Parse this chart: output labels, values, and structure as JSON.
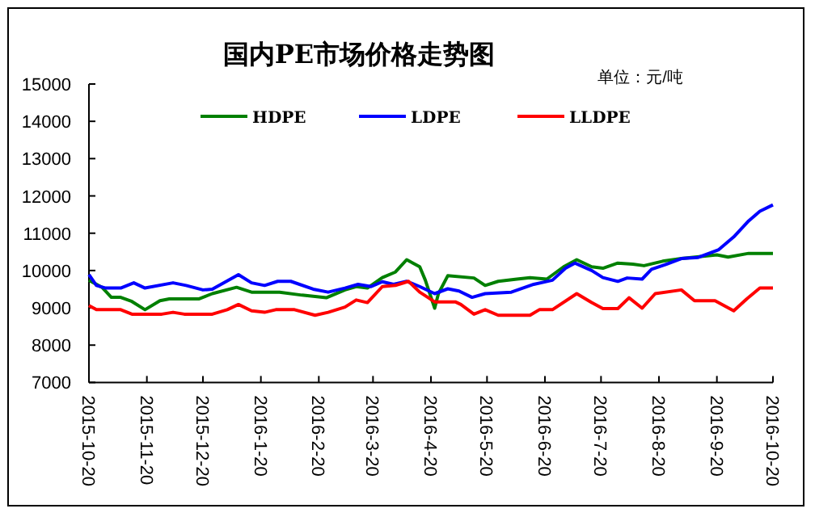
{
  "chart_data": {
    "type": "line",
    "title": "国内PE市场价格走势图",
    "annotations": [
      "单位：元/吨"
    ],
    "xlim": [
      "2015-10-20",
      "2016-10-20"
    ],
    "xticks": [
      {
        "value": "2015-10-20",
        "label": "2015-10-20"
      },
      {
        "value": "2015-11-20",
        "label": "2015-11-20"
      },
      {
        "value": "2015-12-20",
        "label": "2015-12-20"
      },
      {
        "value": "2016-01-20",
        "label": "2016-1-20"
      },
      {
        "value": "2016-02-20",
        "label": "2016-2-20"
      },
      {
        "value": "2016-03-20",
        "label": "2016-3-20"
      },
      {
        "value": "2016-04-20",
        "label": "2016-4-20"
      },
      {
        "value": "2016-05-20",
        "label": "2016-5-20"
      },
      {
        "value": "2016-06-20",
        "label": "2016-6-20"
      },
      {
        "value": "2016-07-20",
        "label": "2016-7-20"
      },
      {
        "value": "2016-08-20",
        "label": "2016-8-20"
      },
      {
        "value": "2016-09-20",
        "label": "2016-9-20"
      },
      {
        "value": "2016-10-20",
        "label": "2016-10-20"
      }
    ],
    "ylim": [
      7000,
      15000
    ],
    "yticks": [
      7000,
      8000,
      9000,
      10000,
      11000,
      12000,
      13000,
      14000,
      15000
    ],
    "grid": false,
    "legend": "top",
    "series": [
      {
        "name": "HDPE",
        "color": "#008000",
        "x": [
          "2015-10-20",
          "2015-10-27",
          "2015-11-01",
          "2015-11-06",
          "2015-11-12",
          "2015-11-19",
          "2015-11-27",
          "2015-12-02",
          "2015-12-18",
          "2015-12-25",
          "2016-01-07",
          "2016-01-15",
          "2016-01-30",
          "2016-02-11",
          "2016-02-24",
          "2016-03-05",
          "2016-03-11",
          "2016-03-17",
          "2016-03-25",
          "2016-04-01",
          "2016-04-07",
          "2016-04-14",
          "2016-04-17",
          "2016-04-22",
          "2016-04-24",
          "2016-04-29",
          "2016-05-13",
          "2016-05-19",
          "2016-05-26",
          "2016-06-05",
          "2016-06-12",
          "2016-06-21",
          "2016-06-30",
          "2016-07-07",
          "2016-07-15",
          "2016-07-21",
          "2016-07-29",
          "2016-08-06",
          "2016-08-12",
          "2016-08-22",
          "2016-09-01",
          "2016-09-20",
          "2016-09-26",
          "2016-10-07",
          "2016-10-20"
        ],
        "values": [
          9740,
          9550,
          9280,
          9280,
          9170,
          8950,
          9190,
          9240,
          9240,
          9380,
          9550,
          9420,
          9420,
          9340,
          9270,
          9480,
          9570,
          9530,
          9810,
          9960,
          10290,
          10100,
          9740,
          8990,
          9380,
          9860,
          9800,
          9600,
          9710,
          9770,
          9810,
          9770,
          10100,
          10290,
          10100,
          10060,
          10200,
          10170,
          10130,
          10250,
          10320,
          10420,
          10360,
          10460,
          10460
        ]
      },
      {
        "name": "LDPE",
        "color": "#0000ff",
        "x": [
          "2015-10-20",
          "2015-10-24",
          "2015-10-29",
          "2015-11-06",
          "2015-11-13",
          "2015-11-19",
          "2015-12-04",
          "2015-12-11",
          "2015-12-20",
          "2015-12-25",
          "2016-01-08",
          "2016-01-15",
          "2016-01-22",
          "2016-01-29",
          "2016-02-05",
          "2016-02-17",
          "2016-02-25",
          "2016-03-05",
          "2016-03-12",
          "2016-03-19",
          "2016-03-25",
          "2016-03-31",
          "2016-04-07",
          "2016-04-14",
          "2016-04-22",
          "2016-04-29",
          "2016-05-05",
          "2016-05-12",
          "2016-05-19",
          "2016-06-02",
          "2016-06-14",
          "2016-06-24",
          "2016-07-01",
          "2016-07-06",
          "2016-07-15",
          "2016-07-21",
          "2016-07-29",
          "2016-08-03",
          "2016-08-11",
          "2016-08-16",
          "2016-08-24",
          "2016-09-01",
          "2016-09-10",
          "2016-09-21",
          "2016-09-29",
          "2016-10-07",
          "2016-10-13",
          "2016-10-20"
        ],
        "values": [
          9890,
          9600,
          9530,
          9530,
          9670,
          9530,
          9670,
          9600,
          9480,
          9500,
          9890,
          9670,
          9600,
          9710,
          9710,
          9500,
          9420,
          9530,
          9630,
          9570,
          9700,
          9630,
          9710,
          9570,
          9380,
          9510,
          9450,
          9280,
          9380,
          9420,
          9630,
          9740,
          10060,
          10200,
          10000,
          9810,
          9710,
          9800,
          9770,
          10030,
          10170,
          10320,
          10350,
          10560,
          10900,
          11330,
          11590,
          11760
        ]
      },
      {
        "name": "LLDPE",
        "color": "#ff0000",
        "x": [
          "2015-10-20",
          "2015-10-24",
          "2015-11-06",
          "2015-11-12",
          "2015-11-28",
          "2015-12-04",
          "2015-12-10",
          "2015-12-25",
          "2016-01-02",
          "2016-01-08",
          "2016-01-15",
          "2016-01-22",
          "2016-01-28",
          "2016-02-07",
          "2016-02-18",
          "2016-02-25",
          "2016-03-05",
          "2016-03-11",
          "2016-03-17",
          "2016-03-25",
          "2016-04-01",
          "2016-04-08",
          "2016-04-14",
          "2016-04-22",
          "2016-05-03",
          "2016-05-06",
          "2016-05-13",
          "2016-05-19",
          "2016-05-26",
          "2016-06-12",
          "2016-06-17",
          "2016-06-24",
          "2016-07-07",
          "2016-07-15",
          "2016-07-21",
          "2016-07-29",
          "2016-08-04",
          "2016-08-11",
          "2016-08-18",
          "2016-09-01",
          "2016-09-08",
          "2016-09-19",
          "2016-09-29",
          "2016-10-06",
          "2016-10-13",
          "2016-10-20"
        ],
        "values": [
          9060,
          8950,
          8950,
          8830,
          8830,
          8880,
          8830,
          8830,
          8950,
          9090,
          8920,
          8880,
          8950,
          8950,
          8800,
          8880,
          9020,
          9210,
          9140,
          9570,
          9600,
          9710,
          9420,
          9160,
          9160,
          9090,
          8830,
          8950,
          8800,
          8800,
          8950,
          8950,
          9380,
          9140,
          8980,
          8980,
          9270,
          8990,
          9380,
          9480,
          9190,
          9190,
          8920,
          9240,
          9530,
          9530
        ]
      }
    ]
  }
}
